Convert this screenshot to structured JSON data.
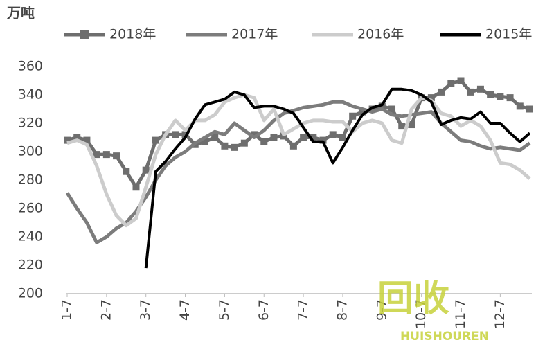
{
  "chart_data": {
    "type": "line",
    "y_label": "万吨",
    "categories": [
      "1-7",
      null,
      null,
      null,
      "2-7",
      null,
      null,
      null,
      "3-7",
      null,
      null,
      null,
      "4-7",
      null,
      null,
      null,
      "5-7",
      null,
      null,
      null,
      "6-7",
      null,
      null,
      null,
      "7-7",
      null,
      null,
      null,
      "8-7",
      null,
      null,
      null,
      "9-7",
      null,
      null,
      null,
      "10-7",
      null,
      null,
      null,
      "11-7",
      null,
      null,
      null,
      "12-7",
      null,
      null,
      null
    ],
    "series": [
      {
        "name": "2018年",
        "color": "#6e6e6e",
        "marker": "square",
        "values": [
          308,
          310,
          308,
          298,
          298,
          297,
          286,
          275,
          287,
          308,
          312,
          312,
          312,
          305,
          307,
          310,
          304,
          303,
          306,
          312,
          307,
          310,
          311,
          304,
          310,
          310,
          308,
          312,
          310,
          325,
          328,
          330,
          332,
          330,
          318,
          319,
          338,
          338,
          342,
          348,
          350,
          342,
          344,
          340,
          339,
          338,
          332,
          330
        ]
      },
      {
        "name": "2017年",
        "color": "#7c7c7c",
        "marker": "none",
        "values": [
          271,
          260,
          250,
          236,
          240,
          246,
          250,
          258,
          268,
          280,
          290,
          296,
          300,
          306,
          310,
          314,
          312,
          320,
          315,
          310,
          315,
          322,
          327,
          329,
          331,
          332,
          333,
          335,
          335,
          332,
          330,
          328,
          330,
          326,
          325,
          326,
          327,
          328,
          320,
          314,
          308,
          307,
          304,
          302,
          303,
          302,
          301,
          306
        ]
      },
      {
        "name": "2016年",
        "color": "#cccccc",
        "marker": "none",
        "values": [
          306,
          308,
          305,
          290,
          270,
          255,
          248,
          253,
          275,
          298,
          312,
          322,
          315,
          322,
          322,
          326,
          335,
          338,
          340,
          338,
          322,
          330,
          312,
          316,
          320,
          322,
          322,
          321,
          321,
          314,
          320,
          322,
          320,
          308,
          306,
          330,
          338,
          336,
          327,
          325,
          318,
          322,
          318,
          308,
          292,
          291,
          287,
          281
        ]
      },
      {
        "name": "2015年",
        "color": "#000000",
        "marker": "none",
        "values": [
          null,
          null,
          null,
          null,
          null,
          null,
          null,
          null,
          218,
          286,
          293,
          302,
          310,
          323,
          333,
          335,
          337,
          342,
          340,
          331,
          332,
          332,
          330,
          327,
          317,
          307,
          307,
          292,
          303,
          315,
          326,
          331,
          333,
          344,
          344,
          343,
          340,
          335,
          319,
          322,
          324,
          323,
          328,
          320,
          320,
          313,
          307,
          313
        ]
      }
    ],
    "ylim": [
      200,
      360
    ],
    "yticks": [
      200,
      220,
      240,
      260,
      280,
      300,
      320,
      340,
      360
    ],
    "grid": false,
    "watermark": {
      "text": "回收",
      "subtext": "HUISHOUREN"
    }
  }
}
